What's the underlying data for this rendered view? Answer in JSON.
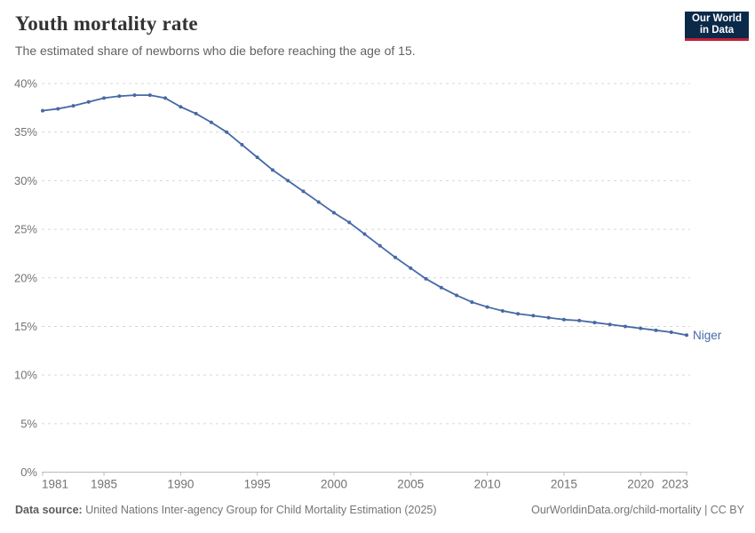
{
  "header": {
    "title": "Youth mortality rate",
    "subtitle": "The estimated share of newborns who die before reaching the age of 15.",
    "logo": {
      "line1": "Our World",
      "line2": "in Data"
    }
  },
  "footer": {
    "datasource_label": "Data source:",
    "datasource_text": " United Nations Inter-agency Group for Child Mortality Estimation (2025)",
    "credit": "OurWorldinData.org/child-mortality | CC BY"
  },
  "colors": {
    "line": "#4669a5",
    "grid": "#d7d7d7",
    "axis": "#bbbbbb",
    "tick_label": "#737373",
    "logo_navy": "#0b2949",
    "logo_red": "#bf2036"
  },
  "chart_data": {
    "type": "line",
    "title": "Youth mortality rate",
    "subtitle": "The estimated share of newborns who die before reaching the age of 15.",
    "xlabel": "",
    "ylabel": "",
    "x_start": 1981,
    "x_end": 2023,
    "ylim": [
      0,
      40
    ],
    "y_ticks": [
      0,
      5,
      10,
      15,
      20,
      25,
      30,
      35,
      40
    ],
    "y_tick_suffix": "%",
    "x_ticks": [
      1981,
      1985,
      1990,
      1995,
      2000,
      2005,
      2010,
      2015,
      2020,
      2023
    ],
    "grid": "horizontal-dashed",
    "legend_position": "end-of-line-label",
    "series": [
      {
        "name": "Niger",
        "color": "#4669a5",
        "x": [
          1981,
          1982,
          1983,
          1984,
          1985,
          1986,
          1987,
          1988,
          1989,
          1990,
          1991,
          1992,
          1993,
          1994,
          1995,
          1996,
          1997,
          1998,
          1999,
          2000,
          2001,
          2002,
          2003,
          2004,
          2005,
          2006,
          2007,
          2008,
          2009,
          2010,
          2011,
          2012,
          2013,
          2014,
          2015,
          2016,
          2017,
          2018,
          2019,
          2020,
          2021,
          2022,
          2023
        ],
        "values": [
          37.2,
          37.4,
          37.7,
          38.1,
          38.5,
          38.7,
          38.8,
          38.8,
          38.5,
          37.6,
          36.9,
          36.0,
          35.0,
          33.7,
          32.4,
          31.1,
          30.0,
          28.9,
          27.8,
          26.7,
          25.7,
          24.5,
          23.3,
          22.1,
          21.0,
          19.9,
          19.0,
          18.2,
          17.5,
          17.0,
          16.6,
          16.3,
          16.1,
          15.9,
          15.7,
          15.6,
          15.4,
          15.2,
          15.0,
          14.8,
          14.6,
          14.4,
          14.1
        ]
      }
    ]
  }
}
